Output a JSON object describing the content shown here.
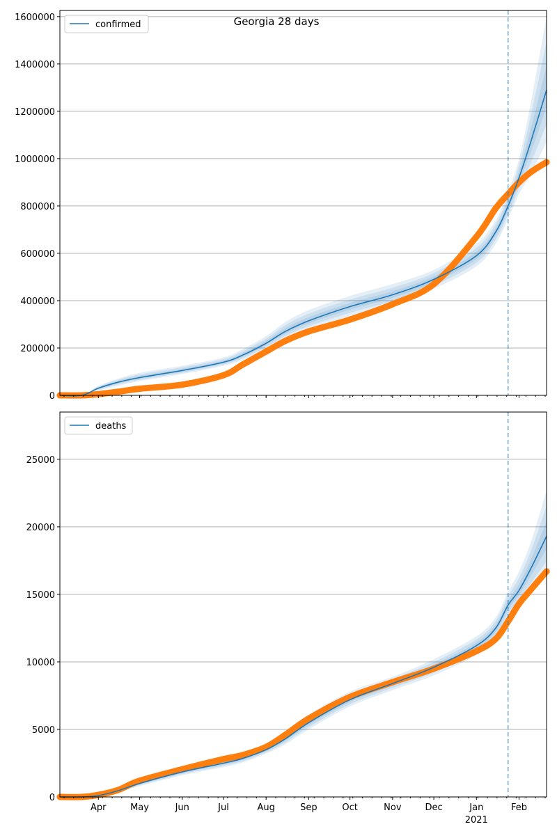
{
  "title": "Georgia 28 days",
  "colors": {
    "model": "#1f77b4",
    "observed": "#ff7f0e",
    "band": "#1f77b4",
    "grid": "#b0b0b0"
  },
  "chart_data": [
    {
      "type": "line",
      "legend": "confirmed",
      "legend_placement": "top-left",
      "xlim": [
        "2020-03-04",
        "2021-02-21"
      ],
      "ylim": [
        0,
        1626000
      ],
      "yticks": [
        0,
        200000,
        400000,
        600000,
        800000,
        1000000,
        1200000,
        1400000,
        1600000
      ],
      "grid": "y",
      "forecast_start": "2021-01-24",
      "dates": [
        "2020-03-04",
        "2020-03-20",
        "2020-04-01",
        "2020-04-15",
        "2020-05-01",
        "2020-06-01",
        "2020-07-01",
        "2020-07-15",
        "2020-08-01",
        "2020-08-15",
        "2020-09-01",
        "2020-10-01",
        "2020-11-01",
        "2020-12-01",
        "2021-01-01",
        "2021-01-15",
        "2021-01-24",
        "2021-02-01",
        "2021-02-10",
        "2021-02-21"
      ],
      "observed": [
        0,
        0,
        5000,
        15000,
        28000,
        45000,
        85000,
        130000,
        185000,
        230000,
        270000,
        320000,
        385000,
        470000,
        670000,
        790000,
        850000,
        900000,
        945000,
        985000
      ],
      "model": [
        0,
        0,
        30000,
        55000,
        75000,
        105000,
        140000,
        170000,
        220000,
        270000,
        315000,
        375000,
        425000,
        490000,
        590000,
        690000,
        800000,
        920000,
        1080000,
        1290000
      ],
      "band_upper": [
        0,
        0,
        40000,
        70000,
        95000,
        125000,
        160000,
        195000,
        250000,
        310000,
        360000,
        420000,
        470000,
        530000,
        640000,
        740000,
        860000,
        1000000,
        1250000,
        1600000
      ],
      "band_lower": [
        0,
        0,
        20000,
        40000,
        60000,
        90000,
        125000,
        150000,
        195000,
        240000,
        280000,
        335000,
        385000,
        450000,
        545000,
        640000,
        745000,
        850000,
        940000,
        1070000
      ]
    },
    {
      "type": "line",
      "legend": "deaths",
      "legend_placement": "top-left",
      "xlim": [
        "2020-03-04",
        "2021-02-21"
      ],
      "ylim": [
        0,
        28500
      ],
      "yticks": [
        0,
        5000,
        10000,
        15000,
        20000,
        25000
      ],
      "grid": "y",
      "forecast_start": "2021-01-24",
      "dates": [
        "2020-03-04",
        "2020-03-20",
        "2020-04-01",
        "2020-04-15",
        "2020-05-01",
        "2020-06-01",
        "2020-07-01",
        "2020-07-15",
        "2020-08-01",
        "2020-08-15",
        "2020-09-01",
        "2020-10-01",
        "2020-11-01",
        "2020-12-01",
        "2021-01-01",
        "2021-01-15",
        "2021-01-24",
        "2021-02-01",
        "2021-02-10",
        "2021-02-21"
      ],
      "observed": [
        0,
        0,
        150,
        500,
        1200,
        2050,
        2800,
        3100,
        3700,
        4600,
        5800,
        7400,
        8500,
        9500,
        10800,
        11700,
        13000,
        14300,
        15400,
        16700
      ],
      "model": [
        0,
        0,
        100,
        450,
        1000,
        1850,
        2500,
        2850,
        3500,
        4300,
        5500,
        7200,
        8400,
        9600,
        11200,
        12500,
        14200,
        15300,
        17000,
        19300
      ],
      "band_upper": [
        0,
        0,
        150,
        600,
        1200,
        2100,
        2800,
        3150,
        3800,
        4800,
        6100,
        7800,
        8900,
        10200,
        11900,
        13300,
        15200,
        16700,
        19000,
        22700
      ],
      "band_lower": [
        0,
        0,
        50,
        350,
        800,
        1600,
        2200,
        2550,
        3200,
        3900,
        5000,
        6700,
        7900,
        9000,
        10500,
        11700,
        13200,
        14300,
        15300,
        16500
      ]
    }
  ],
  "xaxis": {
    "ticks": [
      {
        "date": "2020-04-01",
        "label": "Apr"
      },
      {
        "date": "2020-05-01",
        "label": "May"
      },
      {
        "date": "2020-06-01",
        "label": "Jun"
      },
      {
        "date": "2020-07-01",
        "label": "Jul"
      },
      {
        "date": "2020-08-01",
        "label": "Aug"
      },
      {
        "date": "2020-09-01",
        "label": "Sep"
      },
      {
        "date": "2020-10-01",
        "label": "Oct"
      },
      {
        "date": "2020-11-01",
        "label": "Nov"
      },
      {
        "date": "2020-12-01",
        "label": "Dec"
      },
      {
        "date": "2021-01-01",
        "label": "Jan"
      },
      {
        "date": "2021-02-01",
        "label": "Feb"
      }
    ],
    "year_label": "2021"
  }
}
